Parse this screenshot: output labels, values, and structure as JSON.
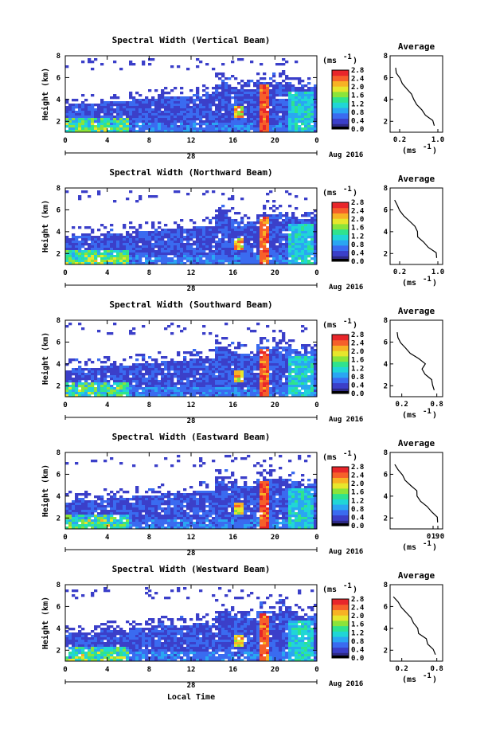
{
  "figure": {
    "x_axis_label": "Local Time",
    "date_label": "Aug 2016",
    "day_label": "28",
    "unit_label": "(ms",
    "unit_superscript": "-1",
    "unit_suffix": ")",
    "average_title": "Average",
    "height_label": "Height (km)"
  },
  "chart_data": [
    {
      "type": "heatmap",
      "title": "Spectral Width (Vertical Beam)",
      "ylabel": "Height (km)",
      "ylim": [
        1,
        8
      ],
      "yticks": [
        "2",
        "4",
        "6",
        "8"
      ],
      "xlim": [
        0,
        24
      ],
      "xticks": [
        "0",
        "4",
        "8",
        "12",
        "16",
        "20",
        "0"
      ],
      "colorbar": {
        "min": 0.0,
        "max": 2.8,
        "ticks": [
          "2.8",
          "2.4",
          "2.0",
          "1.6",
          "1.2",
          "0.8",
          "0.4",
          "0.0"
        ]
      },
      "average_profile": {
        "xticks": [
          "0.2",
          "1.0"
        ],
        "xlim": [
          0.0,
          1.1
        ],
        "values": [
          0.95,
          0.9,
          0.75,
          0.68,
          0.55,
          0.5,
          0.45,
          0.33,
          0.25,
          0.2,
          0.12,
          0.1
        ]
      }
    },
    {
      "type": "heatmap",
      "title": "Spectral Width (Northward Beam)",
      "ylabel": "Height (km)",
      "ylim": [
        1,
        8
      ],
      "yticks": [
        "2",
        "4",
        "6",
        "8"
      ],
      "xlim": [
        0,
        24
      ],
      "xticks": [
        "0",
        "4",
        "8",
        "12",
        "16",
        "20",
        "0"
      ],
      "colorbar": {
        "min": 0.0,
        "max": 2.8,
        "ticks": [
          "2.8",
          "2.4",
          "2.0",
          "1.6",
          "1.2",
          "0.8",
          "0.4",
          "0.0"
        ]
      },
      "average_profile": {
        "xticks": [
          "0.2",
          "1.0"
        ],
        "xlim": [
          0.0,
          1.1
        ],
        "values": [
          1.0,
          0.95,
          0.8,
          0.72,
          0.6,
          0.55,
          0.5,
          0.4,
          0.3,
          0.22,
          0.14,
          0.1
        ]
      }
    },
    {
      "type": "heatmap",
      "title": "Spectral Width (Southward Beam)",
      "ylabel": "Height (km)",
      "ylim": [
        1,
        8
      ],
      "yticks": [
        "2",
        "4",
        "6",
        "8"
      ],
      "xlim": [
        0,
        24
      ],
      "xticks": [
        "0",
        "4",
        "8",
        "12",
        "16",
        "20",
        "0"
      ],
      "colorbar": {
        "min": 0.0,
        "max": 2.8,
        "ticks": [
          "2.8",
          "2.4",
          "2.0",
          "1.6",
          "1.2",
          "0.8",
          "0.4",
          "0.0"
        ]
      },
      "average_profile": {
        "xticks": [
          "0.2",
          "0.8"
        ],
        "xlim": [
          0.0,
          0.9
        ],
        "values": [
          0.78,
          0.74,
          0.7,
          0.62,
          0.55,
          0.6,
          0.5,
          0.35,
          0.25,
          0.18,
          0.12,
          0.1
        ]
      }
    },
    {
      "type": "heatmap",
      "title": "Spectral Width (Eastward Beam)",
      "ylabel": "Height (km)",
      "ylim": [
        1,
        8
      ],
      "yticks": [
        "2",
        "4",
        "6",
        "8"
      ],
      "xlim": [
        0,
        24
      ],
      "xticks": [
        "0",
        "4",
        "8",
        "12",
        "16",
        "20",
        "0"
      ],
      "colorbar": {
        "min": 0.0,
        "max": 2.8,
        "ticks": [
          "2.8",
          "2.4",
          "2.0",
          "1.6",
          "1.2",
          "0.8",
          "0.4",
          "0.0"
        ]
      },
      "average_profile": {
        "xticks": [
          "0.9",
          "1.0"
        ],
        "xlim": [
          0.0,
          1.1
        ],
        "values": [
          1.02,
          0.98,
          0.85,
          0.75,
          0.62,
          0.58,
          0.55,
          0.45,
          0.32,
          0.24,
          0.15,
          0.1
        ]
      }
    },
    {
      "type": "heatmap",
      "title": "Spectral Width (Westward Beam)",
      "ylabel": "Height (km)",
      "ylim": [
        1,
        8
      ],
      "yticks": [
        "2",
        "4",
        "6",
        "8"
      ],
      "xlim": [
        0,
        24
      ],
      "xticks": [
        "0",
        "4",
        "8",
        "12",
        "16",
        "20",
        "0"
      ],
      "colorbar": {
        "min": 0.0,
        "max": 2.8,
        "ticks": [
          "2.8",
          "2.4",
          "2.0",
          "1.6",
          "1.2",
          "0.8",
          "0.4",
          "0.0"
        ]
      },
      "average_profile": {
        "xticks": [
          "0.2",
          "0.8"
        ],
        "xlim": [
          0.0,
          0.9
        ],
        "values": [
          0.8,
          0.76,
          0.66,
          0.6,
          0.5,
          0.46,
          0.42,
          0.34,
          0.25,
          0.2,
          0.12,
          0.08
        ]
      }
    }
  ],
  "colors": {
    "scale": [
      "#2e2a86",
      "#3b3fc9",
      "#3a6bf0",
      "#2aa6f2",
      "#20d6d6",
      "#2fe38e",
      "#8be43a",
      "#e7e62c",
      "#f7b224",
      "#f6602a",
      "#e8262a"
    ]
  }
}
